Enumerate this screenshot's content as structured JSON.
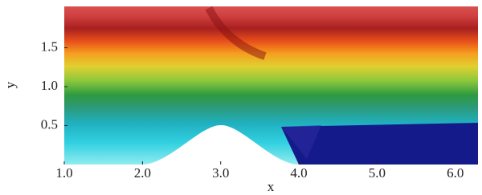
{
  "chart_data": {
    "type": "field",
    "xlabel": "x",
    "ylabel": "y",
    "xlim": [
      1.0,
      6.29
    ],
    "ylim": [
      0,
      2.03
    ],
    "xticks": [
      {
        "value": 1.0,
        "label": "1.0"
      },
      {
        "value": 2.0,
        "label": "2.0"
      },
      {
        "value": 3.0,
        "label": "3.0"
      },
      {
        "value": 4.0,
        "label": "4.0"
      },
      {
        "value": 5.0,
        "label": "5.0"
      },
      {
        "value": 6.0,
        "label": "6.0"
      }
    ],
    "yticks": [
      0.5,
      {
        "value": 1.0,
        "label": "1.0"
      },
      1.5
    ]
  }
}
